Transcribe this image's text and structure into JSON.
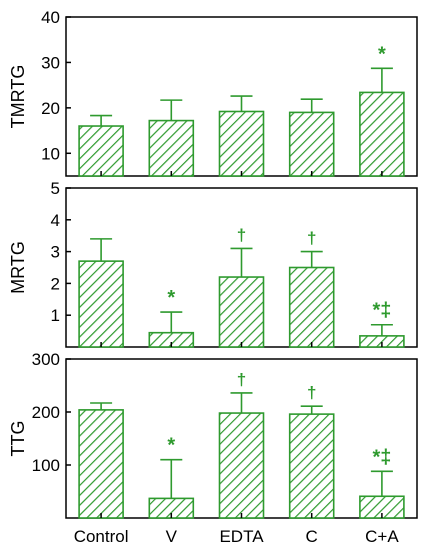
{
  "chart_data": [
    {
      "type": "bar",
      "categories": [
        "Control",
        "V",
        "EDTA",
        "C",
        "C+A"
      ],
      "ylabel": "TMRTG",
      "ylim": [
        5,
        40
      ],
      "yticks": [
        10,
        20,
        30,
        40
      ],
      "values": [
        16.0,
        17.2,
        19.2,
        19.0,
        23.4
      ],
      "errors": [
        2.3,
        4.5,
        3.4,
        2.9,
        5.3
      ],
      "annotations": [
        "",
        "",
        "",
        "",
        "*"
      ],
      "grid": false
    },
    {
      "type": "bar",
      "categories": [
        "Control",
        "V",
        "EDTA",
        "C",
        "C+A"
      ],
      "ylabel": "MRTG",
      "ylim": [
        0,
        5
      ],
      "yticks": [
        1,
        2,
        3,
        4,
        5
      ],
      "values": [
        2.7,
        0.45,
        2.2,
        2.5,
        0.35
      ],
      "errors": [
        0.7,
        0.65,
        0.9,
        0.5,
        0.35
      ],
      "annotations": [
        "",
        "*",
        "†",
        "†",
        "*‡"
      ],
      "grid": false
    },
    {
      "type": "bar",
      "categories": [
        "Control",
        "V",
        "EDTA",
        "C",
        "C+A"
      ],
      "ylabel": "TTG",
      "ylim": [
        0,
        300
      ],
      "yticks": [
        100,
        200,
        300
      ],
      "values": [
        204,
        37,
        198,
        196,
        41
      ],
      "errors": [
        13,
        73,
        38,
        15,
        47
      ],
      "annotations": [
        "",
        "*",
        "†",
        "†",
        "*‡"
      ],
      "grid": false
    }
  ],
  "colors": {
    "bar": "#2e9a2e",
    "annotation": "#2e9a2e",
    "axis": "#000000"
  }
}
